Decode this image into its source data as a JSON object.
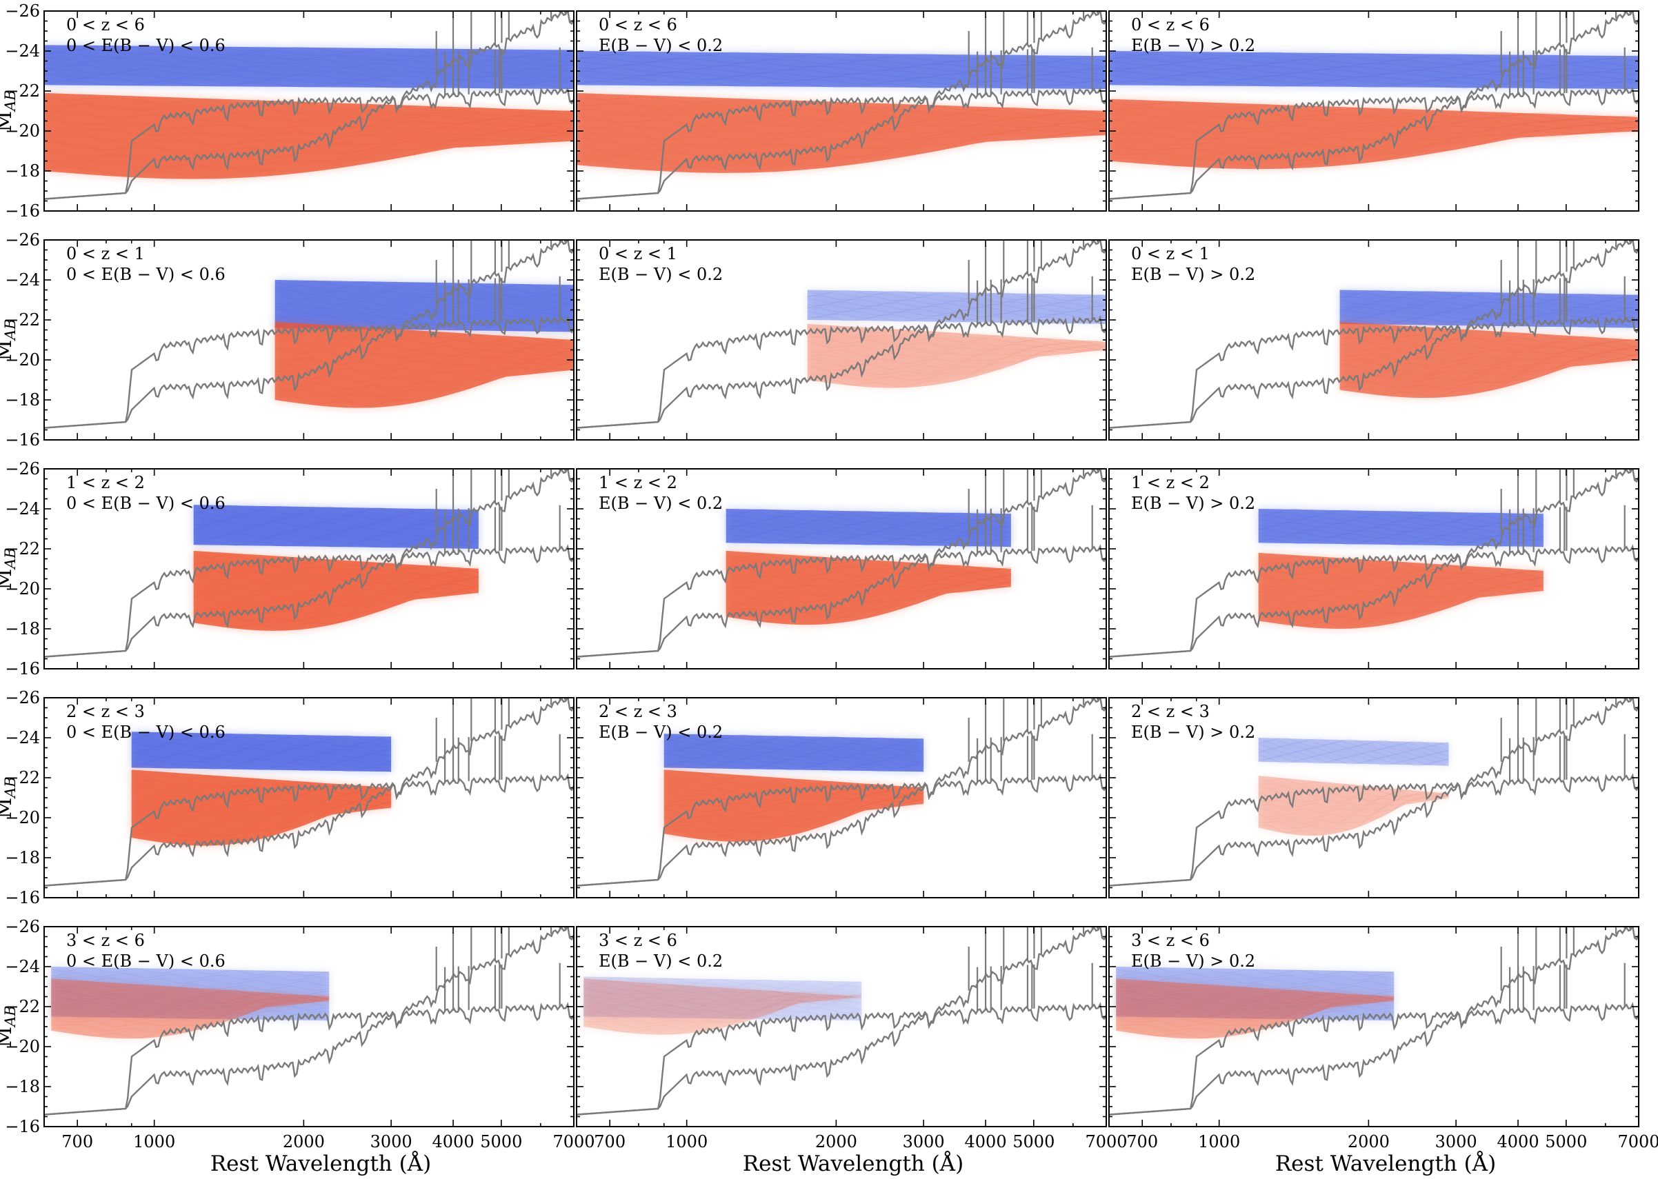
{
  "figure": {
    "ylabel_main": "M",
    "ylabel_sub": "AB",
    "xlabel": "Rest Wavelength (Å)"
  },
  "colors": {
    "blue": "#4a62e0",
    "red": "#ec5532",
    "template": "#7a7a7a",
    "axes": "#000000"
  },
  "chart_data": {
    "type": "line",
    "layout": "5 rows × 3 columns of panels",
    "x_scale": "log",
    "xlim": [
      600,
      7000
    ],
    "ylim": [
      -16,
      -26
    ],
    "y_inverted": true,
    "x_ticks": [
      700,
      1000,
      2000,
      3000,
      4000,
      5000,
      7000
    ],
    "x_tick_labels": [
      "700",
      "1000",
      "2000",
      "3000",
      "4000",
      "5000",
      "7000"
    ],
    "y_ticks": [
      -16,
      -18,
      -20,
      -22,
      -24,
      -26
    ],
    "y_tick_labels": [
      "−16",
      "−18",
      "−20",
      "−22",
      "−24",
      "−26"
    ],
    "grid": false,
    "series": [
      {
        "color": "blue",
        "description_values": "bundle of SED curves, roughly M_AB −22 to −24"
      },
      {
        "color": "red",
        "description_values": "bundle of SED curves, roughly M_AB −18 to −22"
      },
      {
        "color": "template",
        "points": [
          [
            600,
            -16.6
          ],
          [
            880,
            -16.9
          ],
          [
            900,
            -19.5
          ],
          [
            1050,
            -20.7
          ],
          [
            1500,
            -21.3
          ],
          [
            2000,
            -21.5
          ],
          [
            3000,
            -21.6
          ],
          [
            4000,
            -21.8
          ],
          [
            5000,
            -21.9
          ],
          [
            7000,
            -22.0
          ]
        ]
      },
      {
        "color": "template",
        "points": [
          [
            600,
            -16.6
          ],
          [
            880,
            -16.9
          ],
          [
            900,
            -17.5
          ],
          [
            1000,
            -18.6
          ],
          [
            1500,
            -18.8
          ],
          [
            2000,
            -19.2
          ],
          [
            2500,
            -20.4
          ],
          [
            3000,
            -21.5
          ],
          [
            3500,
            -22.3
          ],
          [
            4000,
            -23.5
          ],
          [
            5000,
            -24.4
          ],
          [
            6500,
            -25.8
          ],
          [
            7000,
            -26.0
          ]
        ]
      }
    ],
    "panels": [
      {
        "z_label": "0 < z < 6",
        "ebv_label": "0 < E(B − V) < 0.6",
        "x_range": [
          600,
          7000
        ],
        "blue_band": [
          -22.3,
          -24.3
        ],
        "red_band": [
          -18.0,
          -21.3
        ],
        "blue_alpha": 0.9,
        "red_alpha": 0.9
      },
      {
        "z_label": "0 < z < 6",
        "ebv_label": "E(B − V) < 0.2",
        "x_range": [
          600,
          7000
        ],
        "blue_band": [
          -22.3,
          -24.0
        ],
        "red_band": [
          -18.3,
          -21.3
        ],
        "blue_alpha": 0.85,
        "red_alpha": 0.85
      },
      {
        "z_label": "0 < z < 6",
        "ebv_label": "E(B − V) > 0.2",
        "x_range": [
          600,
          7000
        ],
        "blue_band": [
          -22.3,
          -24.0
        ],
        "red_band": [
          -18.5,
          -21.0
        ],
        "blue_alpha": 0.85,
        "red_alpha": 0.85
      },
      {
        "z_label": "0 < z < 1",
        "ebv_label": "0 < E(B − V) < 0.6",
        "x_range": [
          1750,
          7000
        ],
        "blue_band": [
          -21.6,
          -24.0
        ],
        "red_band": [
          -18.0,
          -21.3
        ],
        "blue_alpha": 0.9,
        "red_alpha": 0.9
      },
      {
        "z_label": "0 < z < 1",
        "ebv_label": "E(B − V) < 0.2",
        "x_range": [
          1750,
          7000
        ],
        "blue_band": [
          -22.0,
          -23.5
        ],
        "red_band": [
          -19.0,
          -21.2
        ],
        "blue_alpha": 0.45,
        "red_alpha": 0.4
      },
      {
        "z_label": "0 < z < 1",
        "ebv_label": "E(B − V) > 0.2",
        "x_range": [
          1750,
          7000
        ],
        "blue_band": [
          -21.8,
          -23.5
        ],
        "red_band": [
          -18.5,
          -21.3
        ],
        "blue_alpha": 0.8,
        "red_alpha": 0.8
      },
      {
        "z_label": "1 < z < 2",
        "ebv_label": "0 < E(B − V) < 0.6",
        "x_range": [
          1200,
          4500
        ],
        "blue_band": [
          -22.2,
          -24.2
        ],
        "red_band": [
          -18.3,
          -21.3
        ],
        "blue_alpha": 0.95,
        "red_alpha": 0.95
      },
      {
        "z_label": "1 < z < 2",
        "ebv_label": "E(B − V) < 0.2",
        "x_range": [
          1200,
          4500
        ],
        "blue_band": [
          -22.3,
          -24.0
        ],
        "red_band": [
          -18.6,
          -21.3
        ],
        "blue_alpha": 0.9,
        "red_alpha": 0.9
      },
      {
        "z_label": "1 < z < 2",
        "ebv_label": "E(B − V) > 0.2",
        "x_range": [
          1200,
          4500
        ],
        "blue_band": [
          -22.3,
          -24.0
        ],
        "red_band": [
          -18.4,
          -21.2
        ],
        "blue_alpha": 0.85,
        "red_alpha": 0.85
      },
      {
        "z_label": "2 < z < 3",
        "ebv_label": "0 < E(B − V) < 0.6",
        "x_range": [
          900,
          3000
        ],
        "blue_band": [
          -22.5,
          -24.3
        ],
        "red_band": [
          -19.0,
          -21.8
        ],
        "blue_alpha": 0.95,
        "red_alpha": 0.95
      },
      {
        "z_label": "2 < z < 3",
        "ebv_label": "E(B − V) < 0.2",
        "x_range": [
          900,
          3000
        ],
        "blue_band": [
          -22.5,
          -24.2
        ],
        "red_band": [
          -19.2,
          -21.8
        ],
        "blue_alpha": 0.9,
        "red_alpha": 0.9
      },
      {
        "z_label": "2 < z < 3",
        "ebv_label": "E(B − V) > 0.2",
        "x_range": [
          1200,
          2900
        ],
        "blue_band": [
          -22.8,
          -24.0
        ],
        "red_band": [
          -19.5,
          -21.5
        ],
        "blue_alpha": 0.4,
        "red_alpha": 0.35
      },
      {
        "z_label": "3 < z < 6",
        "ebv_label": "0 < E(B − V) < 0.6",
        "x_range": [
          620,
          2250
        ],
        "blue_band": [
          -21.5,
          -24.0
        ],
        "red_band": [
          -20.8,
          -22.8
        ],
        "blue_alpha": 0.45,
        "red_alpha": 0.5
      },
      {
        "z_label": "3 < z < 6",
        "ebv_label": "E(B − V) < 0.2",
        "x_range": [
          620,
          2250
        ],
        "blue_band": [
          -21.5,
          -23.5
        ],
        "red_band": [
          -21.0,
          -22.8
        ],
        "blue_alpha": 0.25,
        "red_alpha": 0.3
      },
      {
        "z_label": "3 < z < 6",
        "ebv_label": "E(B − V) > 0.2",
        "x_range": [
          620,
          2250
        ],
        "blue_band": [
          -21.5,
          -24.0
        ],
        "red_band": [
          -20.8,
          -22.8
        ],
        "blue_alpha": 0.45,
        "red_alpha": 0.5
      }
    ]
  }
}
